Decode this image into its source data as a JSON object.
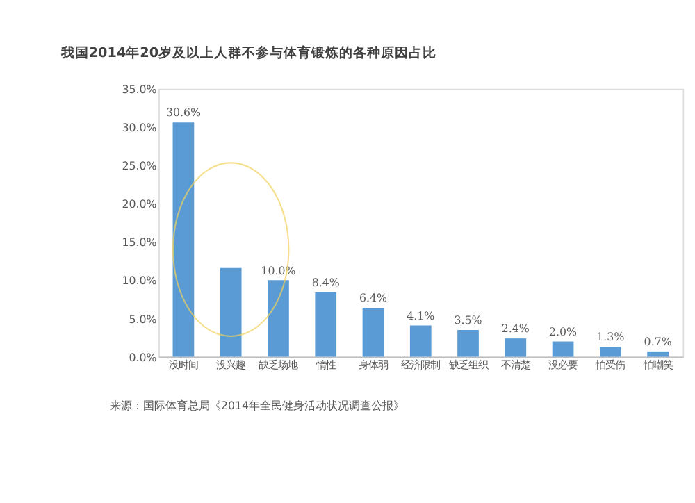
{
  "chart_data": {
    "type": "bar",
    "title": "我国2014年20岁及以上人群不参与体育锻炼的各种原因占比",
    "categories": [
      "没时间",
      "没兴趣",
      "缺乏场地",
      "惰性",
      "身体弱",
      "经济限制",
      "缺乏组织",
      "不清楚",
      "没必要",
      "怕受伤",
      "怕嘲笑"
    ],
    "values": [
      30.6,
      11.6,
      10.0,
      8.4,
      6.4,
      4.1,
      3.5,
      2.4,
      2.0,
      1.3,
      0.7
    ],
    "value_labels": [
      "30.6%",
      null,
      "10.0%",
      "8.4%",
      "6.4%",
      "4.1%",
      "3.5%",
      "2.4%",
      "2.0%",
      "1.3%",
      "0.7%"
    ],
    "color": "#5b9bd5",
    "ylim": [
      0,
      35
    ],
    "yticks": [
      {
        "value": 0,
        "label": "0.0%"
      },
      {
        "value": 5,
        "label": "5.0%"
      },
      {
        "value": 10,
        "label": "10.0%"
      },
      {
        "value": 15,
        "label": "15.0%"
      },
      {
        "value": 20,
        "label": "20.0%"
      },
      {
        "value": 25,
        "label": "25.0%"
      },
      {
        "value": 30,
        "label": "30.0%"
      },
      {
        "value": 35,
        "label": "35.0%"
      }
    ],
    "grid": false,
    "annotations": [
      "来源：国际体育总局《2014年全民健身活动状况调查公报》"
    ]
  }
}
